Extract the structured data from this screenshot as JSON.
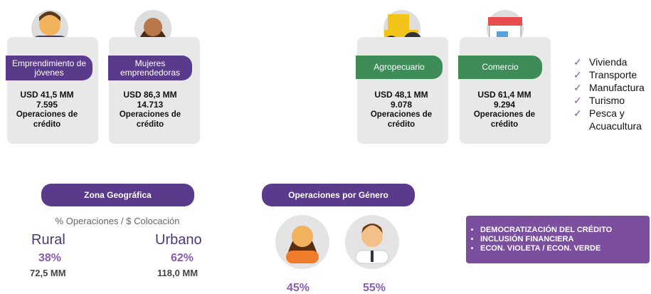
{
  "cards": [
    {
      "label": "Emprendimiento de jóvenes",
      "amount": "USD 41,5 MM",
      "count": "7.595",
      "desc": "Operaciones de crédito"
    },
    {
      "label": "Mujeres emprendedoras",
      "amount": "USD 86,3 MM",
      "count": "14.713",
      "desc": "Operaciones de crédito"
    },
    {
      "label": "Agropecuario",
      "amount": "USD 48,1 MM",
      "count": "9.078",
      "desc": "Operaciones de crédito"
    },
    {
      "label": "Comercio",
      "amount": "USD 61,4 MM",
      "count": "9.294",
      "desc": "Operaciones de crédito"
    }
  ],
  "sectors": [
    "Vivienda",
    "Transporte",
    "Manufactura",
    "Turismo",
    "Pesca y Acuacultura"
  ],
  "geo": {
    "title": "Zona Geográfica",
    "subtitle": "% Operaciones / $ Colocación",
    "zones": [
      {
        "name": "Rural",
        "pct": "38%",
        "amount": "72,5 MM"
      },
      {
        "name": "Urbano",
        "pct": "62%",
        "amount": "118,0 MM"
      }
    ]
  },
  "gender": {
    "title": "Operaciones por Género",
    "values": [
      "45%",
      "55%"
    ]
  },
  "pillars": [
    "DEMOCRATIZACIÓN DEL CRÉDITO",
    "INCLUSIÓN FINANCIERA",
    "ECON. VIOLETA / ECON. VERDE"
  ]
}
